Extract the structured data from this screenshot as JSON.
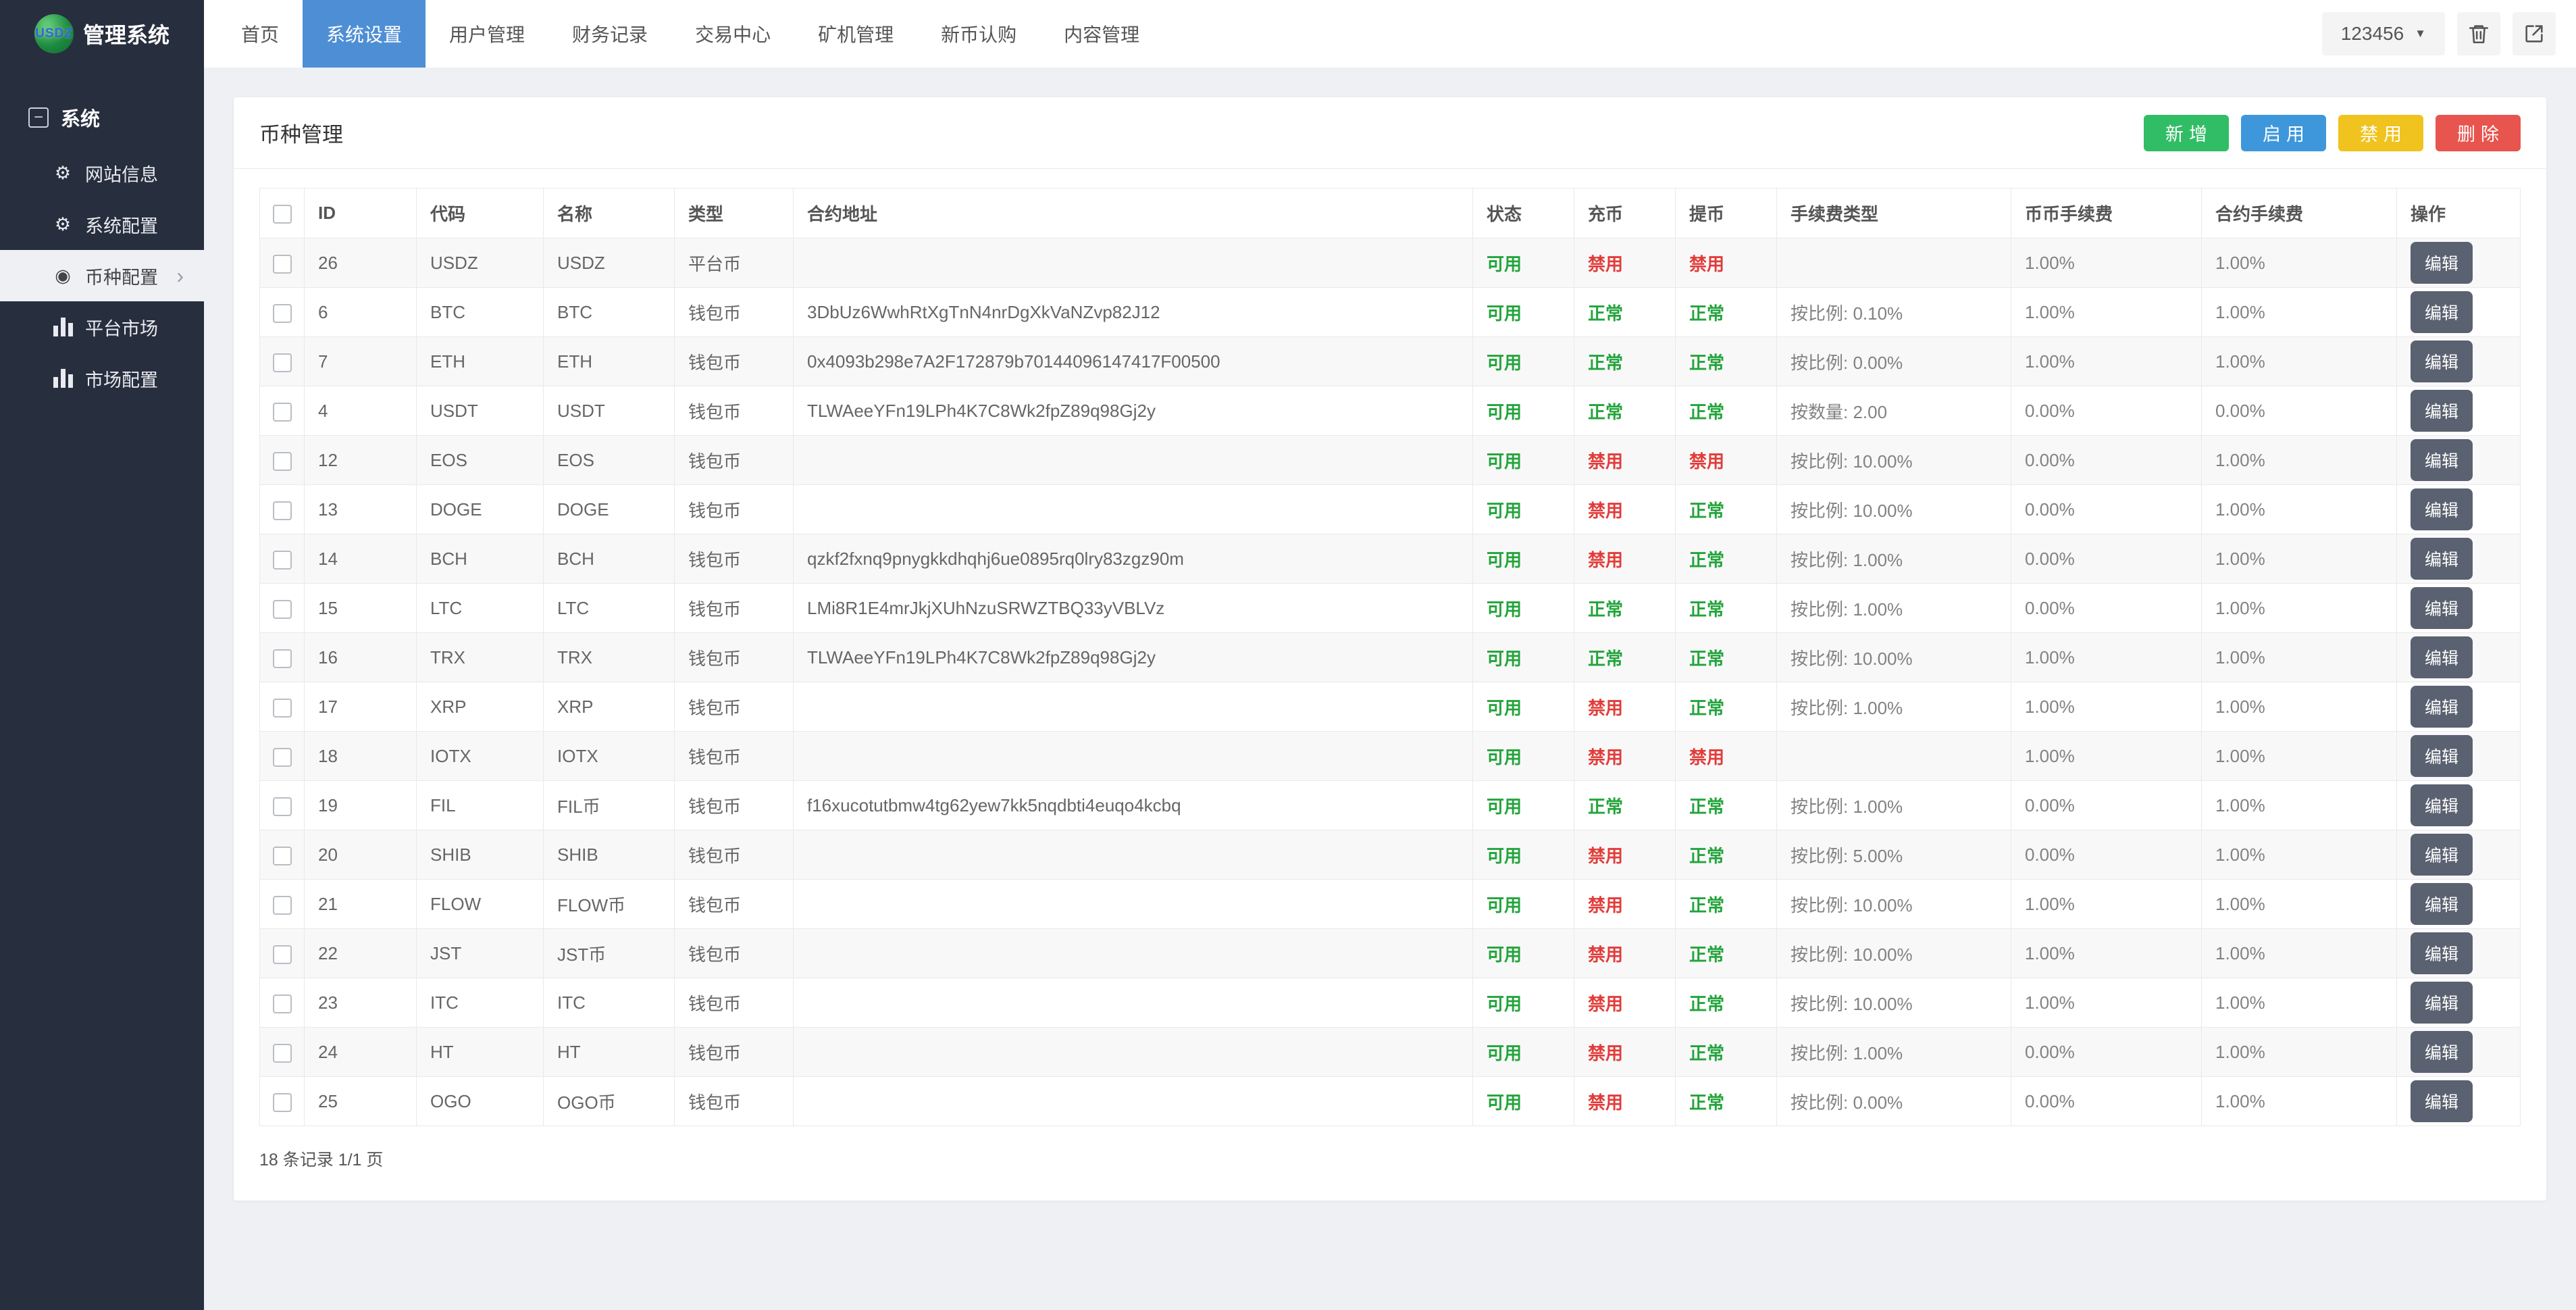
{
  "navbar": {
    "logo_text": "USDZ",
    "brand": "管理系统",
    "items": [
      {
        "label": "首页",
        "active": false
      },
      {
        "label": "系统设置",
        "active": true
      },
      {
        "label": "用户管理",
        "active": false
      },
      {
        "label": "财务记录",
        "active": false
      },
      {
        "label": "交易中心",
        "active": false
      },
      {
        "label": "矿机管理",
        "active": false
      },
      {
        "label": "新币认购",
        "active": false
      },
      {
        "label": "内容管理",
        "active": false
      }
    ],
    "user_dropdown_label": "123456",
    "icon_buttons": [
      {
        "icon": "trash-icon"
      },
      {
        "icon": "export-icon"
      }
    ]
  },
  "sidebar": {
    "section_label": "系统",
    "section_icon": "collapse-minus-icon",
    "items": [
      {
        "label": "网站信息",
        "icon": "gear-icon",
        "active": false
      },
      {
        "label": "系统配置",
        "icon": "gear-icon",
        "active": false
      },
      {
        "label": "币种配置",
        "icon": "dot-circle-icon",
        "active": true
      },
      {
        "label": "平台市场",
        "icon": "bar-chart-icon",
        "active": false
      },
      {
        "label": "市场配置",
        "icon": "bar-chart-icon",
        "active": false
      }
    ]
  },
  "page": {
    "title": "币种管理",
    "actions": [
      {
        "label": "新增",
        "color": "#31bd65",
        "name": "add-button"
      },
      {
        "label": "启用",
        "color": "#3e97db",
        "name": "enable-button"
      },
      {
        "label": "禁用",
        "color": "#f0c31e",
        "name": "disable-button"
      },
      {
        "label": "删除",
        "color": "#e8544e",
        "name": "delete-button"
      }
    ],
    "table": {
      "columns": [
        "ID",
        "代码",
        "名称",
        "类型",
        "合约地址",
        "状态",
        "充币",
        "提币",
        "手续费类型",
        "币币手续费",
        "合约手续费",
        "操作"
      ],
      "edit_label": "编辑",
      "rows": [
        {
          "id": "26",
          "code": "USDZ",
          "name": "USDZ",
          "type": "平台币",
          "contract": "",
          "status": "可用",
          "deposit": "禁用",
          "withdraw": "禁用",
          "fee_type": "",
          "coin_fee": "1.00%",
          "contract_fee": "1.00%"
        },
        {
          "id": "6",
          "code": "BTC",
          "name": "BTC",
          "type": "钱包币",
          "contract": "3DbUz6WwhRtXgTnN4nrDgXkVaNZvp82J12",
          "status": "可用",
          "deposit": "正常",
          "withdraw": "正常",
          "fee_type": "按比例: 0.10%",
          "coin_fee": "1.00%",
          "contract_fee": "1.00%"
        },
        {
          "id": "7",
          "code": "ETH",
          "name": "ETH",
          "type": "钱包币",
          "contract": "0x4093b298e7A2F172879b70144096147417F00500",
          "status": "可用",
          "deposit": "正常",
          "withdraw": "正常",
          "fee_type": "按比例: 0.00%",
          "coin_fee": "1.00%",
          "contract_fee": "1.00%"
        },
        {
          "id": "4",
          "code": "USDT",
          "name": "USDT",
          "type": "钱包币",
          "contract": "TLWAeeYFn19LPh4K7C8Wk2fpZ89q98Gj2y",
          "status": "可用",
          "deposit": "正常",
          "withdraw": "正常",
          "fee_type": "按数量: 2.00",
          "coin_fee": "0.00%",
          "contract_fee": "0.00%"
        },
        {
          "id": "12",
          "code": "EOS",
          "name": "EOS",
          "type": "钱包币",
          "contract": "",
          "status": "可用",
          "deposit": "禁用",
          "withdraw": "禁用",
          "fee_type": "按比例: 10.00%",
          "coin_fee": "0.00%",
          "contract_fee": "1.00%"
        },
        {
          "id": "13",
          "code": "DOGE",
          "name": "DOGE",
          "type": "钱包币",
          "contract": "",
          "status": "可用",
          "deposit": "禁用",
          "withdraw": "正常",
          "fee_type": "按比例: 10.00%",
          "coin_fee": "0.00%",
          "contract_fee": "1.00%"
        },
        {
          "id": "14",
          "code": "BCH",
          "name": "BCH",
          "type": "钱包币",
          "contract": "qzkf2fxnq9pnygkkdhqhj6ue0895rq0lry83zgz90m",
          "status": "可用",
          "deposit": "禁用",
          "withdraw": "正常",
          "fee_type": "按比例: 1.00%",
          "coin_fee": "0.00%",
          "contract_fee": "1.00%"
        },
        {
          "id": "15",
          "code": "LTC",
          "name": "LTC",
          "type": "钱包币",
          "contract": "LMi8R1E4mrJkjXUhNzuSRWZTBQ33yVBLVz",
          "status": "可用",
          "deposit": "正常",
          "withdraw": "正常",
          "fee_type": "按比例: 1.00%",
          "coin_fee": "0.00%",
          "contract_fee": "1.00%"
        },
        {
          "id": "16",
          "code": "TRX",
          "name": "TRX",
          "type": "钱包币",
          "contract": "TLWAeeYFn19LPh4K7C8Wk2fpZ89q98Gj2y",
          "status": "可用",
          "deposit": "正常",
          "withdraw": "正常",
          "fee_type": "按比例: 10.00%",
          "coin_fee": "1.00%",
          "contract_fee": "1.00%"
        },
        {
          "id": "17",
          "code": "XRP",
          "name": "XRP",
          "type": "钱包币",
          "contract": "",
          "status": "可用",
          "deposit": "禁用",
          "withdraw": "正常",
          "fee_type": "按比例: 1.00%",
          "coin_fee": "1.00%",
          "contract_fee": "1.00%"
        },
        {
          "id": "18",
          "code": "IOTX",
          "name": "IOTX",
          "type": "钱包币",
          "contract": "",
          "status": "可用",
          "deposit": "禁用",
          "withdraw": "禁用",
          "fee_type": "",
          "coin_fee": "1.00%",
          "contract_fee": "1.00%"
        },
        {
          "id": "19",
          "code": "FIL",
          "name": "FIL币",
          "type": "钱包币",
          "contract": "f16xucotutbmw4tg62yew7kk5nqdbti4euqo4kcbq",
          "status": "可用",
          "deposit": "正常",
          "withdraw": "正常",
          "fee_type": "按比例: 1.00%",
          "coin_fee": "0.00%",
          "contract_fee": "1.00%"
        },
        {
          "id": "20",
          "code": "SHIB",
          "name": "SHIB",
          "type": "钱包币",
          "contract": "",
          "status": "可用",
          "deposit": "禁用",
          "withdraw": "正常",
          "fee_type": "按比例: 5.00%",
          "coin_fee": "0.00%",
          "contract_fee": "1.00%"
        },
        {
          "id": "21",
          "code": "FLOW",
          "name": "FLOW币",
          "type": "钱包币",
          "contract": "",
          "status": "可用",
          "deposit": "禁用",
          "withdraw": "正常",
          "fee_type": "按比例: 10.00%",
          "coin_fee": "1.00%",
          "contract_fee": "1.00%"
        },
        {
          "id": "22",
          "code": "JST",
          "name": "JST币",
          "type": "钱包币",
          "contract": "",
          "status": "可用",
          "deposit": "禁用",
          "withdraw": "正常",
          "fee_type": "按比例: 10.00%",
          "coin_fee": "1.00%",
          "contract_fee": "1.00%"
        },
        {
          "id": "23",
          "code": "ITC",
          "name": "ITC",
          "type": "钱包币",
          "contract": "",
          "status": "可用",
          "deposit": "禁用",
          "withdraw": "正常",
          "fee_type": "按比例: 10.00%",
          "coin_fee": "1.00%",
          "contract_fee": "1.00%"
        },
        {
          "id": "24",
          "code": "HT",
          "name": "HT",
          "type": "钱包币",
          "contract": "",
          "status": "可用",
          "deposit": "禁用",
          "withdraw": "正常",
          "fee_type": "按比例: 1.00%",
          "coin_fee": "0.00%",
          "contract_fee": "1.00%"
        },
        {
          "id": "25",
          "code": "OGO",
          "name": "OGO币",
          "type": "钱包币",
          "contract": "",
          "status": "可用",
          "deposit": "禁用",
          "withdraw": "正常",
          "fee_type": "按比例: 0.00%",
          "coin_fee": "0.00%",
          "contract_fee": "1.00%"
        }
      ]
    },
    "pagination": "18 条记录 1/1 页"
  },
  "colors": {
    "nav_active": "#4e8ed5",
    "sidebar_bg": "#272e3e",
    "page_bg": "#eef0f4",
    "status_positive": "#23a43b",
    "status_negative": "#e13c39",
    "edit_button": "#5a6170"
  }
}
